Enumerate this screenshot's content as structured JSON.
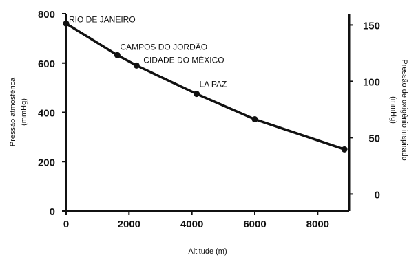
{
  "chart_data": {
    "type": "line",
    "title": "",
    "xlabel": "Altitude (m)",
    "ylabel_left_lines": [
      "Pressão atmosférica",
      "(mmHg)"
    ],
    "ylabel_right_lines": [
      "Pressão de oxigênio inspirado",
      "(mmHg)"
    ],
    "xlim": [
      0,
      9000
    ],
    "ylim_left": [
      0,
      800
    ],
    "ylim_right": [
      -15,
      160
    ],
    "x_ticks": [
      0,
      2000,
      4000,
      6000,
      8000
    ],
    "x_tick_labels": [
      "0",
      "2000",
      "4000",
      "6000",
      "8000"
    ],
    "y_left_ticks": [
      0,
      200,
      400,
      600,
      800
    ],
    "y_left_tick_labels": [
      "0",
      "200",
      "400",
      "600",
      "800"
    ],
    "y_right_ticks": [
      0,
      50,
      100,
      150
    ],
    "y_right_tick_labels": [
      "0",
      "50",
      "100",
      "150"
    ],
    "grid": false,
    "series": [
      {
        "x": [
          0,
          1630,
          2240,
          4150,
          6000,
          8850
        ],
        "y": [
          760,
          632,
          590,
          475,
          372,
          250
        ]
      }
    ],
    "annotations": [
      {
        "text": "RIO DE JANEIRO",
        "x": 0,
        "y": 760
      },
      {
        "text": "CAMPOS DO JORDÃO",
        "x": 1630,
        "y": 632
      },
      {
        "text": "CIDADE DO MÉXICO",
        "x": 2240,
        "y": 590
      },
      {
        "text": "LA PAZ",
        "x": 4150,
        "y": 475
      }
    ]
  }
}
